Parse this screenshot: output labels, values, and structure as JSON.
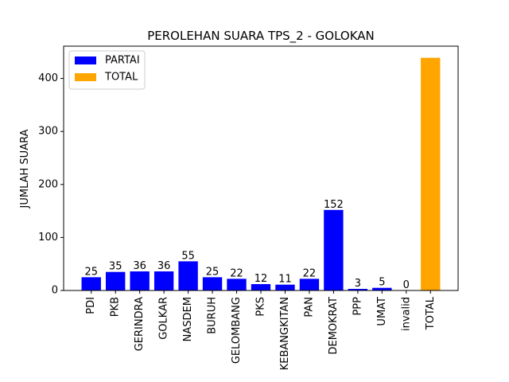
{
  "chart_data": {
    "type": "bar",
    "title": "PEROLEHAN SUARA TPS_2 - GOLOKAN",
    "y_label": "JUMLAH SUARA",
    "categories": [
      "PDI",
      "PKB",
      "GERINDRA",
      "GOLKAR",
      "NASDEM",
      "BURUH",
      "GELOMBANG",
      "PKS",
      "KEBANGKITAN",
      "PAN",
      "DEMOKRAT",
      "PPP",
      "UMAT",
      "invalid",
      "TOTAL"
    ],
    "series": [
      {
        "name": "PARTAI",
        "color": "#0000ff",
        "values": [
          25,
          35,
          36,
          36,
          55,
          25,
          22,
          12,
          11,
          22,
          152,
          3,
          5,
          0,
          null
        ],
        "data_labels": true
      },
      {
        "name": "TOTAL",
        "color": "#ffa500",
        "values": [
          null,
          null,
          null,
          null,
          null,
          null,
          null,
          null,
          null,
          null,
          null,
          null,
          null,
          null,
          439
        ],
        "data_labels": false
      }
    ],
    "ylim": [
      0,
      460.95
    ],
    "yticks": [
      0,
      100,
      200,
      300,
      400
    ],
    "legend": "upper left"
  }
}
